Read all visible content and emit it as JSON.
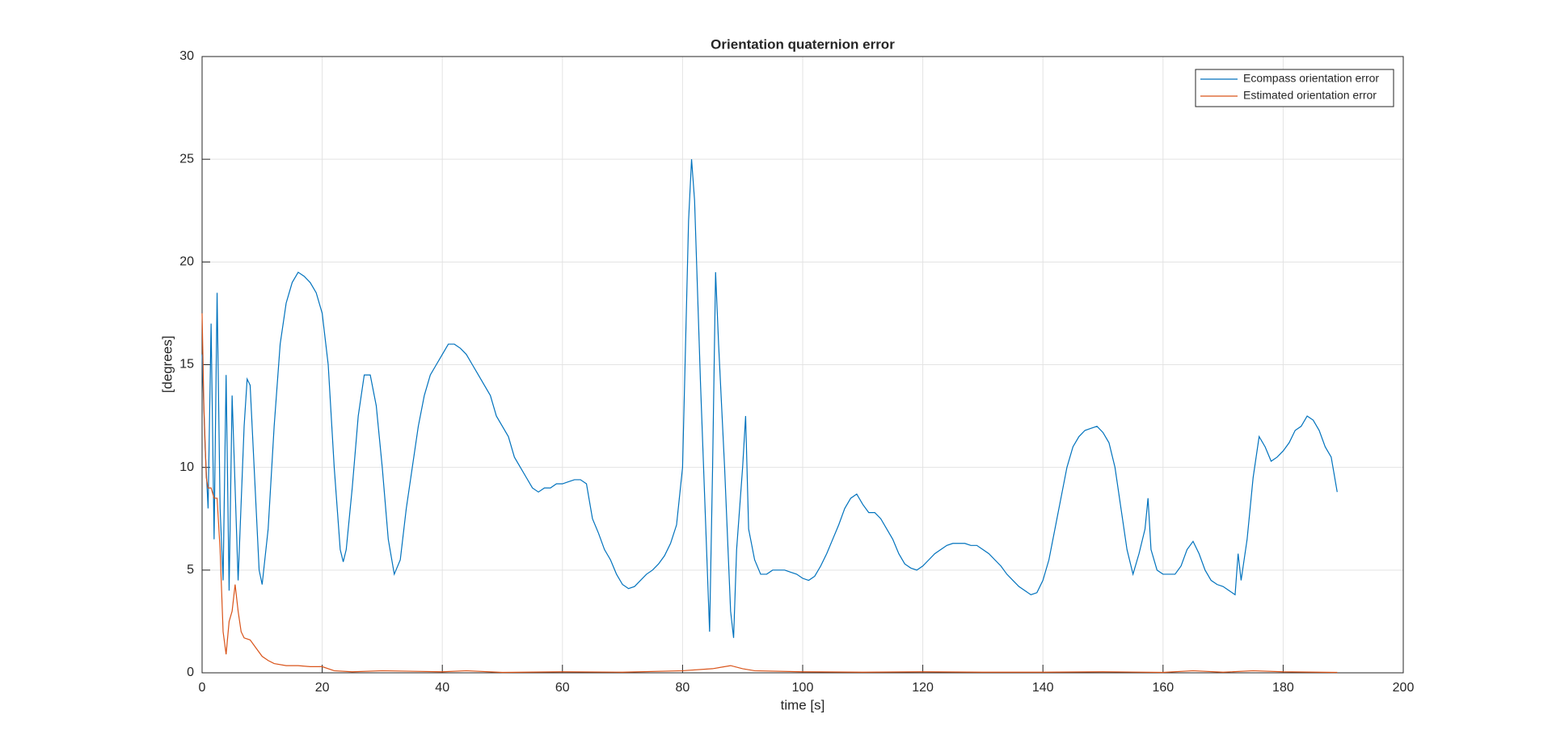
{
  "chart_data": {
    "type": "line",
    "title": "Orientation quaternion error",
    "xlabel": "time [s]",
    "ylabel": "[degrees]",
    "xlim": [
      0,
      200
    ],
    "ylim": [
      0,
      30
    ],
    "xticks": [
      0,
      20,
      40,
      60,
      80,
      100,
      120,
      140,
      160,
      180,
      200
    ],
    "yticks": [
      0,
      5,
      10,
      15,
      20,
      25,
      30
    ],
    "grid": true,
    "legend": "upper right",
    "series": [
      {
        "name": "Ecompass orientation error",
        "color": "#0072bd",
        "x": [
          0,
          0.5,
          1,
          1.5,
          2,
          2.5,
          3,
          3.5,
          4,
          4.5,
          5,
          5.5,
          6,
          7,
          7.5,
          8,
          9,
          9.5,
          10,
          11,
          12,
          13,
          14,
          15,
          16,
          17,
          18,
          19,
          20,
          21,
          22,
          23,
          23.5,
          24,
          25,
          26,
          27,
          28,
          29,
          30,
          31,
          32,
          33,
          34,
          35,
          36,
          37,
          38,
          39,
          40,
          41,
          42,
          43,
          44,
          45,
          46,
          47,
          48,
          49,
          50,
          51,
          52,
          53,
          54,
          55,
          56,
          57,
          58,
          59,
          60,
          61,
          62,
          63,
          64,
          65,
          66,
          67,
          68,
          69,
          70,
          71,
          72,
          73,
          74,
          75,
          76,
          77,
          78,
          79,
          80,
          80.5,
          81,
          81.5,
          82,
          83,
          84,
          84.5,
          85,
          85.5,
          86,
          87,
          88,
          88.5,
          89,
          90,
          90.5,
          91,
          92,
          93,
          94,
          95,
          96,
          97,
          98,
          99,
          100,
          101,
          102,
          103,
          104,
          105,
          106,
          107,
          108,
          109,
          110,
          111,
          112,
          113,
          114,
          115,
          116,
          117,
          118,
          119,
          120,
          121,
          122,
          123,
          124,
          125,
          126,
          127,
          128,
          129,
          130,
          131,
          132,
          133,
          134,
          135,
          136,
          137,
          138,
          139,
          140,
          141,
          142,
          143,
          144,
          145,
          146,
          147,
          148,
          149,
          150,
          151,
          152,
          153,
          154,
          155,
          156,
          157,
          157.5,
          158,
          159,
          160,
          161,
          162,
          163,
          164,
          165,
          166,
          167,
          168,
          169,
          170,
          171,
          172,
          172.5,
          173,
          174,
          175,
          176,
          177,
          178,
          179,
          180,
          181,
          182,
          183,
          184,
          185,
          186,
          187,
          188,
          189
        ],
        "values": [
          15.5,
          11,
          8,
          17,
          6.5,
          18.5,
          8,
          4.5,
          14.5,
          4,
          13.5,
          9,
          4.5,
          12,
          14.3,
          14,
          8,
          5,
          4.3,
          7,
          12,
          16,
          18,
          19,
          19.5,
          19.3,
          19,
          18.5,
          17.5,
          15,
          10,
          6,
          5.4,
          6,
          9,
          12.5,
          14.5,
          14.5,
          13,
          10,
          6.5,
          4.8,
          5.5,
          8,
          10,
          12,
          13.5,
          14.5,
          15,
          15.5,
          16,
          16,
          15.8,
          15.5,
          15,
          14.5,
          14,
          13.5,
          12.5,
          12,
          11.5,
          10.5,
          10,
          9.5,
          9,
          8.8,
          9,
          9,
          9.2,
          9.2,
          9.3,
          9.4,
          9.4,
          9.2,
          7.5,
          6.8,
          6,
          5.5,
          4.8,
          4.3,
          4.1,
          4.2,
          4.5,
          4.8,
          5,
          5.3,
          5.7,
          6.3,
          7.2,
          10,
          16,
          22,
          25,
          23,
          14,
          6,
          2,
          10,
          19.5,
          16,
          10,
          3,
          1.7,
          6,
          10,
          12.5,
          7,
          5.5,
          4.8,
          4.8,
          5,
          5,
          5,
          4.9,
          4.8,
          4.6,
          4.5,
          4.7,
          5.2,
          5.8,
          6.5,
          7.2,
          8,
          8.5,
          8.7,
          8.2,
          7.8,
          7.8,
          7.5,
          7,
          6.5,
          5.8,
          5.3,
          5.1,
          5,
          5.2,
          5.5,
          5.8,
          6,
          6.2,
          6.3,
          6.3,
          6.3,
          6.2,
          6.2,
          6,
          5.8,
          5.5,
          5.2,
          4.8,
          4.5,
          4.2,
          4,
          3.8,
          3.9,
          4.5,
          5.5,
          7,
          8.5,
          10,
          11,
          11.5,
          11.8,
          11.9,
          12,
          11.7,
          11.2,
          10,
          8,
          6,
          4.8,
          5.8,
          7,
          8.5,
          6,
          5,
          4.8,
          4.8,
          4.8,
          5.2,
          6,
          6.4,
          5.8,
          5,
          4.5,
          4.3,
          4.2,
          4,
          3.8,
          5.8,
          4.5,
          6.5,
          9.5,
          11.5,
          11,
          10.3,
          10.5,
          10.8,
          11.2,
          11.8,
          12,
          12.5,
          12.3,
          11.8,
          11,
          10.5,
          8.8
        ]
      },
      {
        "name": "Estimated orientation error",
        "color": "#d95319",
        "x": [
          0,
          0.3,
          0.7,
          1,
          1.5,
          2,
          2.5,
          3,
          3.5,
          4,
          4.5,
          5,
          5.5,
          6,
          6.5,
          7,
          8,
          9,
          10,
          11,
          12,
          14,
          16,
          18,
          20,
          22,
          25,
          30,
          40,
          44,
          50,
          60,
          70,
          80,
          85,
          88,
          90,
          92,
          100,
          110,
          120,
          130,
          140,
          150,
          160,
          165,
          170,
          175,
          180,
          189
        ],
        "values": [
          17.5,
          13,
          9.5,
          9,
          9,
          8.5,
          8.5,
          6,
          2,
          0.9,
          2.5,
          3,
          4.3,
          3,
          2,
          1.7,
          1.6,
          1.2,
          0.8,
          0.6,
          0.45,
          0.35,
          0.35,
          0.3,
          0.3,
          0.1,
          0.05,
          0.1,
          0.05,
          0.1,
          0.02,
          0.05,
          0.03,
          0.1,
          0.2,
          0.35,
          0.2,
          0.1,
          0.05,
          0.03,
          0.05,
          0.03,
          0.03,
          0.05,
          0.02,
          0.1,
          0.03,
          0.1,
          0.05,
          0.02
        ]
      }
    ]
  }
}
